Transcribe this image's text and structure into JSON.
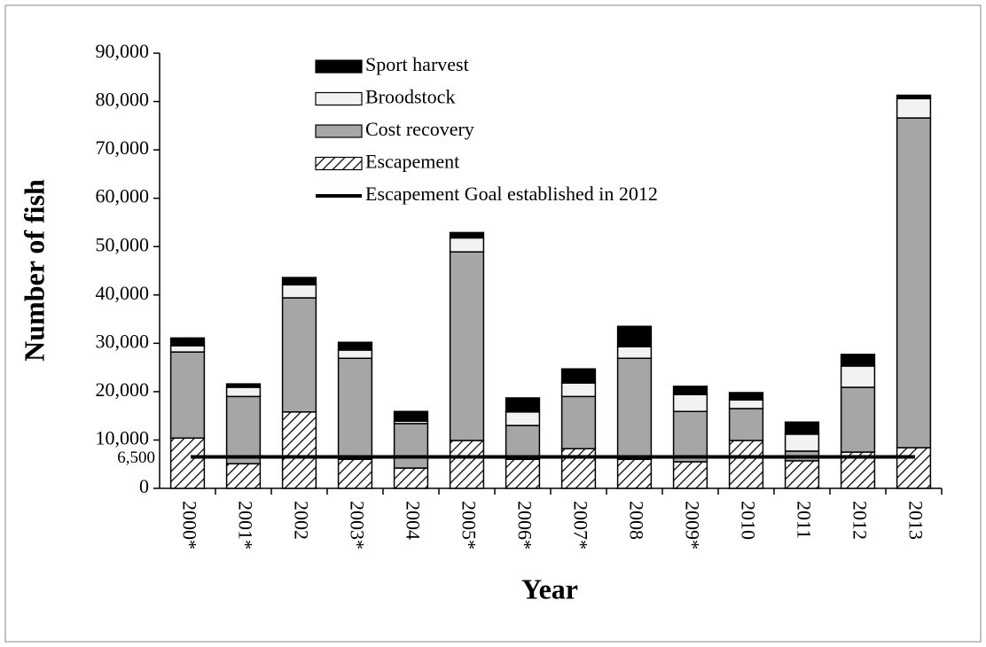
{
  "chart_data": {
    "type": "bar",
    "stacked": true,
    "x_label": "Year",
    "y_label": "Number of fish",
    "categories": [
      "2000*",
      "2001*",
      "2002",
      "2003*",
      "2004",
      "2005*",
      "2006*",
      "2007*",
      "2008",
      "2009*",
      "2010",
      "2011",
      "2012",
      "2013"
    ],
    "series": [
      {
        "name": "Escapement",
        "color": "#ffffff",
        "pattern": "hatch",
        "values": [
          10400,
          5100,
          15800,
          6000,
          4200,
          9900,
          6000,
          8200,
          6000,
          5500,
          9900,
          5700,
          7500,
          8400
        ]
      },
      {
        "name": "Cost recovery",
        "color": "#a6a6a6",
        "values": [
          17800,
          13900,
          23600,
          20900,
          9200,
          39000,
          7000,
          10800,
          20900,
          10400,
          6600,
          2000,
          13400,
          68200
        ]
      },
      {
        "name": "Broodstock",
        "color": "#f2f2f2",
        "values": [
          1300,
          1900,
          2700,
          1700,
          500,
          2900,
          2800,
          2800,
          2400,
          3500,
          1800,
          3500,
          4400,
          4000
        ]
      },
      {
        "name": "Sport harvest",
        "color": "#000000",
        "values": [
          1600,
          700,
          1500,
          1600,
          2000,
          1100,
          2900,
          2900,
          4200,
          1700,
          1500,
          2500,
          2400,
          700
        ]
      }
    ],
    "reference_line": {
      "name": "Escapement Goal established in 2012",
      "value": 6500,
      "label": "6,500",
      "color": "#000000"
    },
    "ylim": [
      0,
      90000
    ],
    "yticks": [
      {
        "value": 0,
        "label": "0"
      },
      {
        "value": 10000,
        "label": "10,000"
      },
      {
        "value": 20000,
        "label": "20,000"
      },
      {
        "value": 30000,
        "label": "30,000"
      },
      {
        "value": 40000,
        "label": "40,000"
      },
      {
        "value": 50000,
        "label": "50,000"
      },
      {
        "value": 60000,
        "label": "60,000"
      },
      {
        "value": 70000,
        "label": "70,000"
      },
      {
        "value": 80000,
        "label": "80,000"
      },
      {
        "value": 90000,
        "label": "90,000"
      }
    ],
    "grid": false,
    "legend": "top-left"
  }
}
